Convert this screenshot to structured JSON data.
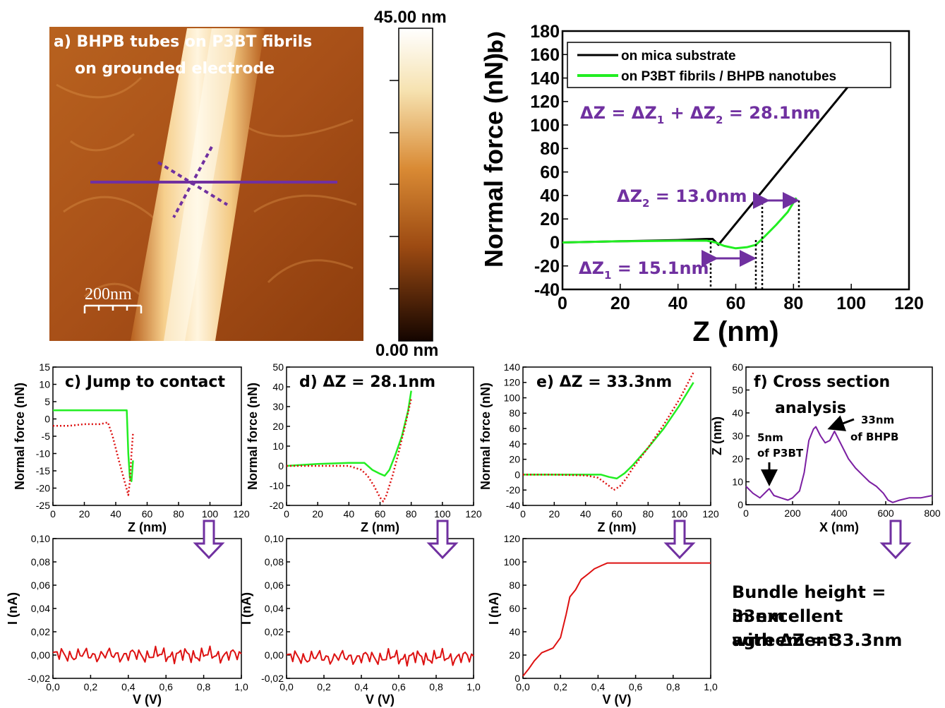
{
  "panel_a": {
    "title_line1": "a) BHPB tubes on P3BT fibrils",
    "title_line2": "on grounded electrode",
    "scalebar": "200nm",
    "colorbar_max": "45.00 nm",
    "colorbar_min": "0.00 nm"
  },
  "panel_b": {
    "label": "b)",
    "xlabel": "Z (nm)",
    "ylabel": "Normal force (nN)",
    "legend": [
      "on mica substrate",
      "on P3BT fibrils / BHPB nanotubes"
    ],
    "ann_total_a": "ΔZ = ΔZ",
    "ann_total_b": " + ΔZ",
    "ann_total_c": " = 28.1nm",
    "ann_dz2_a": "ΔZ",
    "ann_dz2_b": " = 13.0nm",
    "ann_dz1_a": "ΔZ",
    "ann_dz1_b": " = 15.1nm",
    "sub1": "1",
    "sub2": "2"
  },
  "panel_c": {
    "title": "c) Jump to contact",
    "xlabel": "Z (nm)",
    "ylabel": "Normal force (nN)"
  },
  "panel_d": {
    "title": "d) ΔZ = 28.1nm",
    "xlabel": "Z (nm)",
    "ylabel": "Normal force (nN)"
  },
  "panel_e": {
    "title": "e) ΔZ = 33.3nm",
    "xlabel": "Z (nm)",
    "ylabel": "Normal force (nN)"
  },
  "panel_f": {
    "title_line1": "f) Cross section",
    "title_line2": "analysis",
    "ann1_line1": "5nm",
    "ann1_line2": "of P3BT",
    "ann2_line1": "33nm",
    "ann2_line2": "of BHPB",
    "xlabel": "X (nm)",
    "ylabel": "Z (nm)"
  },
  "iv": {
    "xlabel": "V (V)",
    "ylabel": "I (nA)"
  },
  "note": {
    "line1": "Bundle height = 33nm",
    "line2": "in excellent agreement",
    "line3": "with ΔZ = 33.3nm"
  },
  "colors": {
    "mica": "#000000",
    "fibril": "#22ee22",
    "retract": "#dd1111",
    "accent": "#7030a0",
    "profile": "#7b1fa2"
  },
  "chart_data": [
    {
      "type": "line",
      "id": "b",
      "xlabel": "Z (nm)",
      "ylabel": "Normal force (nN)",
      "xlim": [
        0,
        120
      ],
      "ylim": [
        -40,
        180
      ],
      "xticks": [
        0,
        20,
        40,
        60,
        80,
        100,
        120
      ],
      "yticks": [
        -40,
        -20,
        0,
        20,
        40,
        60,
        80,
        100,
        120,
        140,
        160,
        180
      ],
      "series": [
        {
          "name": "on mica substrate",
          "color": "#000000",
          "x": [
            0,
            20,
            40,
            50,
            52,
            54,
            100
          ],
          "y": [
            0,
            1,
            2,
            3,
            3,
            -2,
            136
          ]
        },
        {
          "name": "on P3BT fibrils / BHPB nanotubes",
          "color": "#22ee22",
          "x": [
            0,
            20,
            40,
            50,
            53,
            56,
            60,
            64,
            67,
            70,
            74,
            78,
            81
          ],
          "y": [
            0,
            1,
            1.5,
            1.5,
            0,
            -3,
            -5,
            -4,
            -2,
            5,
            15,
            26,
            38
          ]
        }
      ]
    },
    {
      "type": "line",
      "id": "c",
      "xlabel": "Z (nm)",
      "ylabel": "Normal force (nN)",
      "xlim": [
        0,
        120
      ],
      "ylim": [
        -25,
        15
      ],
      "xticks": [
        0,
        20,
        40,
        60,
        80,
        100,
        120
      ],
      "yticks": [
        -25,
        -20,
        -15,
        -10,
        -5,
        0,
        5,
        10,
        15
      ],
      "series": [
        {
          "name": "",
          "color": "#22ee22",
          "style": "solid",
          "x": [
            0,
            10,
            20,
            30,
            40,
            47,
            48,
            49,
            50,
            51
          ],
          "y": [
            2.5,
            2.5,
            2.5,
            2.5,
            2.5,
            2.5,
            -10,
            -17,
            -18,
            -12
          ]
        },
        {
          "name": "",
          "color": "#dd1111",
          "style": "dotted",
          "x": [
            0,
            10,
            20,
            30,
            35,
            38,
            42,
            45,
            48,
            49,
            50,
            51
          ],
          "y": [
            -2,
            -2,
            -1.5,
            -1.5,
            -1,
            -5,
            -12,
            -17,
            -22,
            -18,
            -10,
            -4
          ]
        }
      ]
    },
    {
      "type": "line",
      "id": "d",
      "xlabel": "Z (nm)",
      "ylabel": "Normal force (nN)",
      "xlim": [
        0,
        120
      ],
      "ylim": [
        -20,
        50
      ],
      "xticks": [
        0,
        20,
        40,
        60,
        80,
        100,
        120
      ],
      "yticks": [
        -20,
        -10,
        0,
        10,
        20,
        30,
        40,
        50
      ],
      "series": [
        {
          "name": "",
          "color": "#22ee22",
          "style": "solid",
          "x": [
            0,
            20,
            40,
            50,
            55,
            60,
            63,
            66,
            70,
            74,
            78,
            80
          ],
          "y": [
            0,
            1,
            1.5,
            1.5,
            -2,
            -4,
            -5,
            -2,
            6,
            15,
            28,
            38
          ]
        },
        {
          "name": "",
          "color": "#dd1111",
          "style": "dotted",
          "x": [
            0,
            20,
            40,
            48,
            52,
            56,
            60,
            62,
            64,
            68,
            72,
            76,
            80
          ],
          "y": [
            0,
            0,
            0,
            -2,
            -5,
            -10,
            -16,
            -18,
            -15,
            -5,
            7,
            20,
            34
          ]
        }
      ]
    },
    {
      "type": "line",
      "id": "e",
      "xlabel": "Z (nm)",
      "ylabel": "Normal force (nN)",
      "xlim": [
        0,
        120
      ],
      "ylim": [
        -40,
        140
      ],
      "xticks": [
        0,
        20,
        40,
        60,
        80,
        100,
        120
      ],
      "yticks": [
        -40,
        -20,
        0,
        20,
        40,
        60,
        80,
        100,
        120,
        140
      ],
      "series": [
        {
          "name": "",
          "color": "#22ee22",
          "style": "solid",
          "x": [
            0,
            20,
            40,
            50,
            55,
            60,
            65,
            70,
            80,
            90,
            100,
            109
          ],
          "y": [
            0,
            0,
            0,
            0,
            -3,
            -5,
            2,
            12,
            35,
            60,
            90,
            120
          ]
        },
        {
          "name": "",
          "color": "#dd1111",
          "style": "dotted",
          "x": [
            0,
            20,
            40,
            48,
            52,
            56,
            58,
            62,
            66,
            70,
            80,
            90,
            100,
            109
          ],
          "y": [
            0,
            0,
            -1,
            -4,
            -10,
            -16,
            -20,
            -15,
            -5,
            8,
            35,
            65,
            98,
            133
          ]
        }
      ]
    },
    {
      "type": "line",
      "id": "f",
      "xlabel": "X (nm)",
      "ylabel": "Z (nm)",
      "xlim": [
        0,
        800
      ],
      "ylim": [
        0,
        60
      ],
      "xticks": [
        0,
        200,
        400,
        600,
        800
      ],
      "yticks": [
        0,
        10,
        20,
        30,
        40,
        50,
        60
      ],
      "series": [
        {
          "name": "",
          "color": "#7b1fa2",
          "x": [
            0,
            30,
            60,
            90,
            100,
            120,
            150,
            180,
            200,
            230,
            250,
            270,
            290,
            300,
            320,
            340,
            360,
            380,
            400,
            420,
            440,
            470,
            500,
            530,
            560,
            590,
            610,
            630,
            660,
            700,
            750,
            800
          ],
          "y": [
            8,
            5,
            3,
            6,
            7,
            4,
            3,
            2,
            3,
            6,
            14,
            28,
            33,
            34,
            30,
            27,
            28,
            32,
            28,
            24,
            20,
            16,
            13,
            10,
            8,
            5,
            2,
            1,
            2,
            3,
            3,
            4
          ]
        }
      ]
    },
    {
      "type": "line",
      "id": "g",
      "xlabel": "V (V)",
      "ylabel": "I (nA)",
      "xlim": [
        0,
        1.0
      ],
      "ylim": [
        -0.02,
        0.1
      ],
      "xticks": [
        0,
        0.2,
        0.4,
        0.6,
        0.8,
        1.0
      ],
      "xticklabels": [
        "0,0",
        "0,2",
        "0,4",
        "0,6",
        "0,8",
        "1,0"
      ],
      "yticks": [
        -0.02,
        0,
        0.02,
        0.04,
        0.06,
        0.08,
        0.1
      ],
      "yticklabels": [
        "-0,02",
        "0,00",
        "0,02",
        "0,04",
        "0,06",
        "0,08",
        "0,10"
      ],
      "noise": {
        "center": 0.0,
        "amplitude": 0.008
      },
      "series": [
        {
          "name": "",
          "color": "#dd1111"
        }
      ]
    },
    {
      "type": "line",
      "id": "h",
      "xlabel": "V (V)",
      "ylabel": "I (nA)",
      "xlim": [
        0,
        1.0
      ],
      "ylim": [
        -0.02,
        0.1
      ],
      "xticks": [
        0,
        0.2,
        0.4,
        0.6,
        0.8,
        1.0
      ],
      "xticklabels": [
        "0,0",
        "0,2",
        "0,4",
        "0,6",
        "0,8",
        "1,0"
      ],
      "yticks": [
        -0.02,
        0,
        0.02,
        0.04,
        0.06,
        0.08,
        0.1
      ],
      "yticklabels": [
        "-0,02",
        "0,00",
        "0,02",
        "0,04",
        "0,06",
        "0,08",
        "0,10"
      ],
      "noise": {
        "center": -0.002,
        "amplitude": 0.008
      },
      "series": [
        {
          "name": "",
          "color": "#dd1111"
        }
      ]
    },
    {
      "type": "line",
      "id": "i",
      "xlabel": "V (V)",
      "ylabel": "I (nA)",
      "xlim": [
        0,
        1.0
      ],
      "ylim": [
        0,
        120
      ],
      "xticks": [
        0,
        0.2,
        0.4,
        0.6,
        0.8,
        1.0
      ],
      "xticklabels": [
        "0,0",
        "0,2",
        "0,4",
        "0,6",
        "0,8",
        "1,0"
      ],
      "yticks": [
        0,
        20,
        40,
        60,
        80,
        100,
        120
      ],
      "series": [
        {
          "name": "",
          "color": "#dd1111",
          "x": [
            0,
            0.03,
            0.06,
            0.1,
            0.13,
            0.16,
            0.2,
            0.23,
            0.25,
            0.28,
            0.31,
            0.35,
            0.38,
            0.42,
            0.45,
            0.5,
            0.6,
            0.8,
            1.0
          ],
          "y": [
            2,
            8,
            15,
            22,
            24,
            26,
            35,
            55,
            70,
            76,
            85,
            90,
            94,
            97,
            99,
            99,
            99,
            99,
            99
          ]
        }
      ]
    }
  ]
}
